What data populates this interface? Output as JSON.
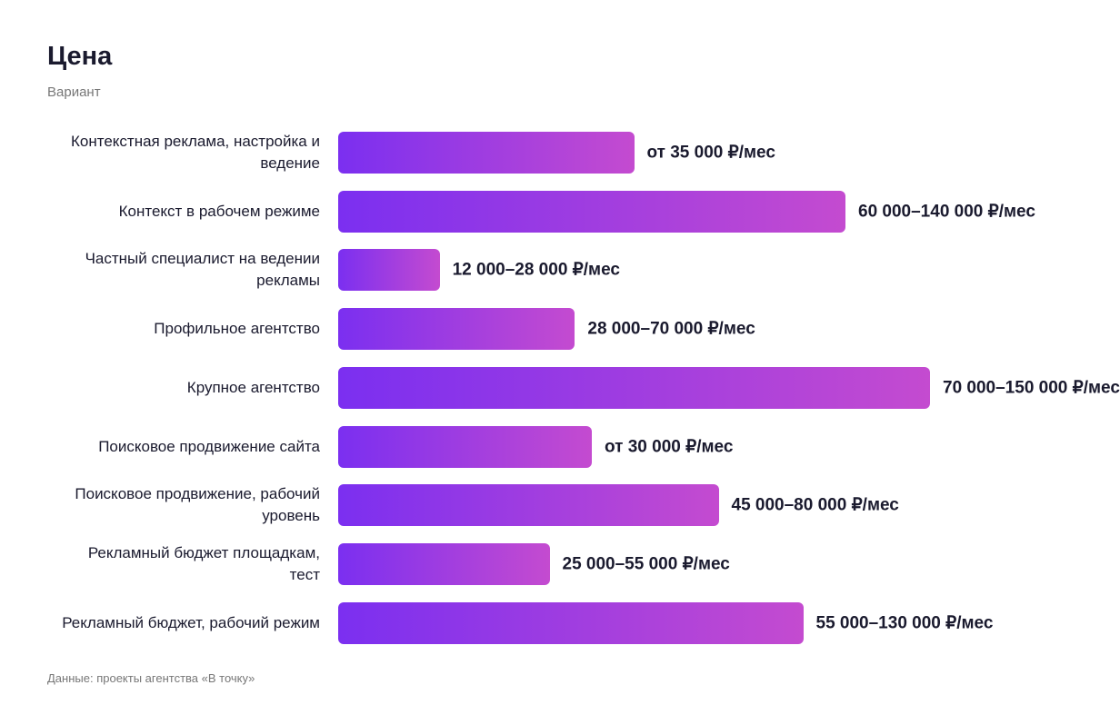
{
  "chart_data": {
    "type": "bar",
    "orientation": "horizontal",
    "title": "Цена",
    "subtitle": "Вариант",
    "note": "Данные: проекты агентства «В точку»",
    "color": [
      "#7b2ff0",
      "#c44bd0"
    ],
    "categories": [
      "Контекстная реклама, настройка и ведение",
      "Контекст в рабочем режиме",
      "Частный специалист на ведении рекламы",
      "Профильное агентство",
      "Крупное агентство",
      "Поисковое продвижение сайта",
      "Поисковое продвижение, рабочий уровень",
      "Рекламный бюджет площадкам, тест",
      "Рекламный бюджет, рабочий режим"
    ],
    "values": [
      35000,
      60000,
      12000,
      28000,
      70000,
      30000,
      45000,
      25000,
      55000
    ],
    "value_labels": [
      "от 35 000 ₽/мес",
      "60 000–140 000 ₽/мес",
      "12 000–28 000 ₽/мес",
      "28 000–70 000 ₽/мес",
      "70 000–150 000 ₽/мес",
      "от 30 000 ₽/мес",
      "45 000–80 000 ₽/мес",
      "25 000–55 000 ₽/мес",
      "55 000–130 000 ₽/мес"
    ]
  }
}
